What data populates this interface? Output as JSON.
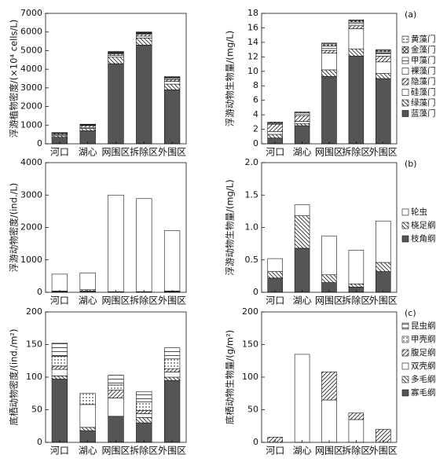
{
  "chart_data": [
    {
      "type": "stacked_bar",
      "ylabel": "浮游植物密度/(×10⁴ cells/L)",
      "categories": [
        "河口",
        "湖心",
        "网围区",
        "拆除区",
        "外围区"
      ],
      "ylim": [
        0,
        7000
      ],
      "yticks": [
        0,
        1000,
        2000,
        3000,
        4000,
        5000,
        6000,
        7000
      ],
      "series": [
        {
          "color": "#555555",
          "values": [
            350,
            700,
            4300,
            5300,
            2900
          ]
        },
        {
          "color": "#222222",
          "pattern": "backslash",
          "values": [
            80,
            120,
            350,
            380,
            300
          ]
        },
        {
          "color": "#ffffff",
          "values": [
            60,
            60,
            100,
            100,
            150
          ]
        },
        {
          "color": "#222222",
          "pattern": "slash",
          "values": [
            60,
            100,
            80,
            100,
            100
          ]
        },
        {
          "color": "#ffffff",
          "values": [
            20,
            20,
            40,
            40,
            50
          ]
        },
        {
          "color": "#222222",
          "pattern": "hlines",
          "values": [
            20,
            20,
            40,
            40,
            50
          ]
        },
        {
          "color": "#222222",
          "pattern": "cross",
          "values": [
            10,
            20,
            30,
            30,
            30
          ]
        },
        {
          "color": "#222222",
          "pattern": "dots",
          "values": [
            0,
            10,
            10,
            10,
            20
          ]
        }
      ]
    },
    {
      "type": "stacked_bar",
      "ylabel": "浮游动物生物量/(mg/L)",
      "annotation": "(a)",
      "legend": "right",
      "categories": [
        "河口",
        "湖心",
        "网围区",
        "拆除区",
        "外围区"
      ],
      "ylim": [
        0,
        18
      ],
      "yticks": [
        0,
        2,
        4,
        6,
        8,
        10,
        12,
        14,
        16,
        18
      ],
      "series": [
        {
          "name": "蓝藻门",
          "color": "#555555",
          "values": [
            0.8,
            2.5,
            9.3,
            12.1,
            9.0
          ]
        },
        {
          "name": "绿藻门",
          "color": "#222222",
          "pattern": "backslash",
          "values": [
            0.5,
            0.3,
            0.9,
            1.0,
            0.7
          ]
        },
        {
          "name": "硅藻门",
          "color": "#ffffff",
          "values": [
            0.4,
            0.3,
            2.3,
            2.8,
            1.6
          ]
        },
        {
          "name": "隐藻门",
          "color": "#222222",
          "pattern": "slash",
          "values": [
            1.0,
            0.8,
            0.4,
            0.4,
            0.8
          ]
        },
        {
          "name": "裸藻门",
          "color": "#ffffff",
          "values": [
            0.1,
            0.2,
            0.3,
            0.3,
            0.3
          ]
        },
        {
          "name": "甲藻门",
          "color": "#222222",
          "pattern": "hlines",
          "values": [
            0.1,
            0.2,
            0.3,
            0.2,
            0.3
          ]
        },
        {
          "name": "金藻门",
          "color": "#222222",
          "pattern": "cross",
          "values": [
            0.1,
            0.1,
            0.3,
            0.2,
            0.2
          ]
        },
        {
          "name": "黄藻门",
          "color": "#222222",
          "pattern": "dots",
          "values": [
            0,
            0,
            0.1,
            0.1,
            0.1
          ]
        }
      ]
    },
    {
      "type": "stacked_bar",
      "ylabel": "浮游动物密度/(ind./L)",
      "categories": [
        "河口",
        "湖心",
        "网围区",
        "拆除区",
        "外围区"
      ],
      "ylim": [
        0,
        4000
      ],
      "yticks": [
        0,
        1000,
        2000,
        3000,
        4000
      ],
      "series": [
        {
          "color": "#555555",
          "values": [
            20,
            40,
            10,
            10,
            20
          ]
        },
        {
          "color": "#222222",
          "pattern": "backslash",
          "values": [
            20,
            40,
            10,
            10,
            20
          ]
        },
        {
          "color": "#ffffff",
          "values": [
            520,
            520,
            2980,
            2870,
            1860
          ]
        }
      ]
    },
    {
      "type": "stacked_bar",
      "ylabel": "浮游动物生物量/(mg/L)",
      "annotation": "(b)",
      "legend": "right",
      "categories": [
        "河口",
        "湖心",
        "网围区",
        "拆除区",
        "外围区"
      ],
      "ylim": [
        0,
        2
      ],
      "yticks": [
        0,
        0.5,
        {
          "value": 1,
          "label": "1.0"
        },
        1.5,
        {
          "value": 2,
          "label": "2.0"
        }
      ],
      "series": [
        {
          "name": "枝角纲",
          "color": "#555555",
          "values": [
            0.22,
            0.68,
            0.15,
            0.08,
            0.32
          ]
        },
        {
          "name": "桡足纲",
          "color": "#222222",
          "pattern": "backslash",
          "values": [
            0.1,
            0.5,
            0.12,
            0.05,
            0.14
          ]
        },
        {
          "name": "轮虫",
          "color": "#ffffff",
          "values": [
            0.2,
            0.17,
            0.6,
            0.52,
            0.64
          ]
        }
      ]
    },
    {
      "type": "stacked_bar",
      "ylabel": "底栖动物密度/(ind./m²)",
      "categories": [
        "河口",
        "湖心",
        "网围区",
        "拆除区",
        "外围区"
      ],
      "ylim": [
        0,
        200
      ],
      "yticks": [
        0,
        50,
        100,
        150,
        200
      ],
      "series": [
        {
          "color": "#555555",
          "values": [
            97,
            18,
            40,
            30,
            95
          ]
        },
        {
          "color": "#222222",
          "pattern": "backslash",
          "values": [
            5,
            5,
            0,
            8,
            5
          ]
        },
        {
          "color": "#ffffff",
          "values": [
            10,
            35,
            28,
            6,
            8
          ]
        },
        {
          "color": "#222222",
          "pattern": "slash",
          "values": [
            5,
            0,
            12,
            5,
            5
          ]
        },
        {
          "color": "#222222",
          "pattern": "dots",
          "values": [
            15,
            17,
            8,
            13,
            15
          ]
        },
        {
          "color": "#222222",
          "pattern": "hlines",
          "values": [
            20,
            0,
            15,
            16,
            17
          ]
        }
      ]
    },
    {
      "type": "stacked_bar",
      "ylabel": "底栖动物生物量/(g/m²)",
      "annotation": "(c)",
      "legend": "right",
      "categories": [
        "河口",
        "湖心",
        "网围区",
        "拆除区",
        "外围区"
      ],
      "ylim": [
        0,
        200
      ],
      "yticks": [
        0,
        50,
        100,
        150,
        200
      ],
      "series": [
        {
          "name": "寡毛纲",
          "color": "#555555",
          "values": [
            0,
            0,
            0,
            0,
            0
          ]
        },
        {
          "name": "多毛纲",
          "color": "#222222",
          "pattern": "backslash",
          "values": [
            0,
            0,
            0,
            0,
            0
          ]
        },
        {
          "name": "双壳纲",
          "color": "#ffffff",
          "values": [
            0,
            135,
            65,
            35,
            0
          ]
        },
        {
          "name": "腹足纲",
          "color": "#222222",
          "pattern": "slash",
          "values": [
            8,
            0,
            43,
            10,
            20
          ]
        },
        {
          "name": "甲壳纲",
          "color": "#222222",
          "pattern": "dots",
          "values": [
            0,
            0,
            0,
            0,
            0
          ]
        },
        {
          "name": "昆虫纲",
          "color": "#222222",
          "pattern": "hlines",
          "values": [
            0,
            0,
            0,
            0,
            0
          ]
        }
      ]
    }
  ]
}
